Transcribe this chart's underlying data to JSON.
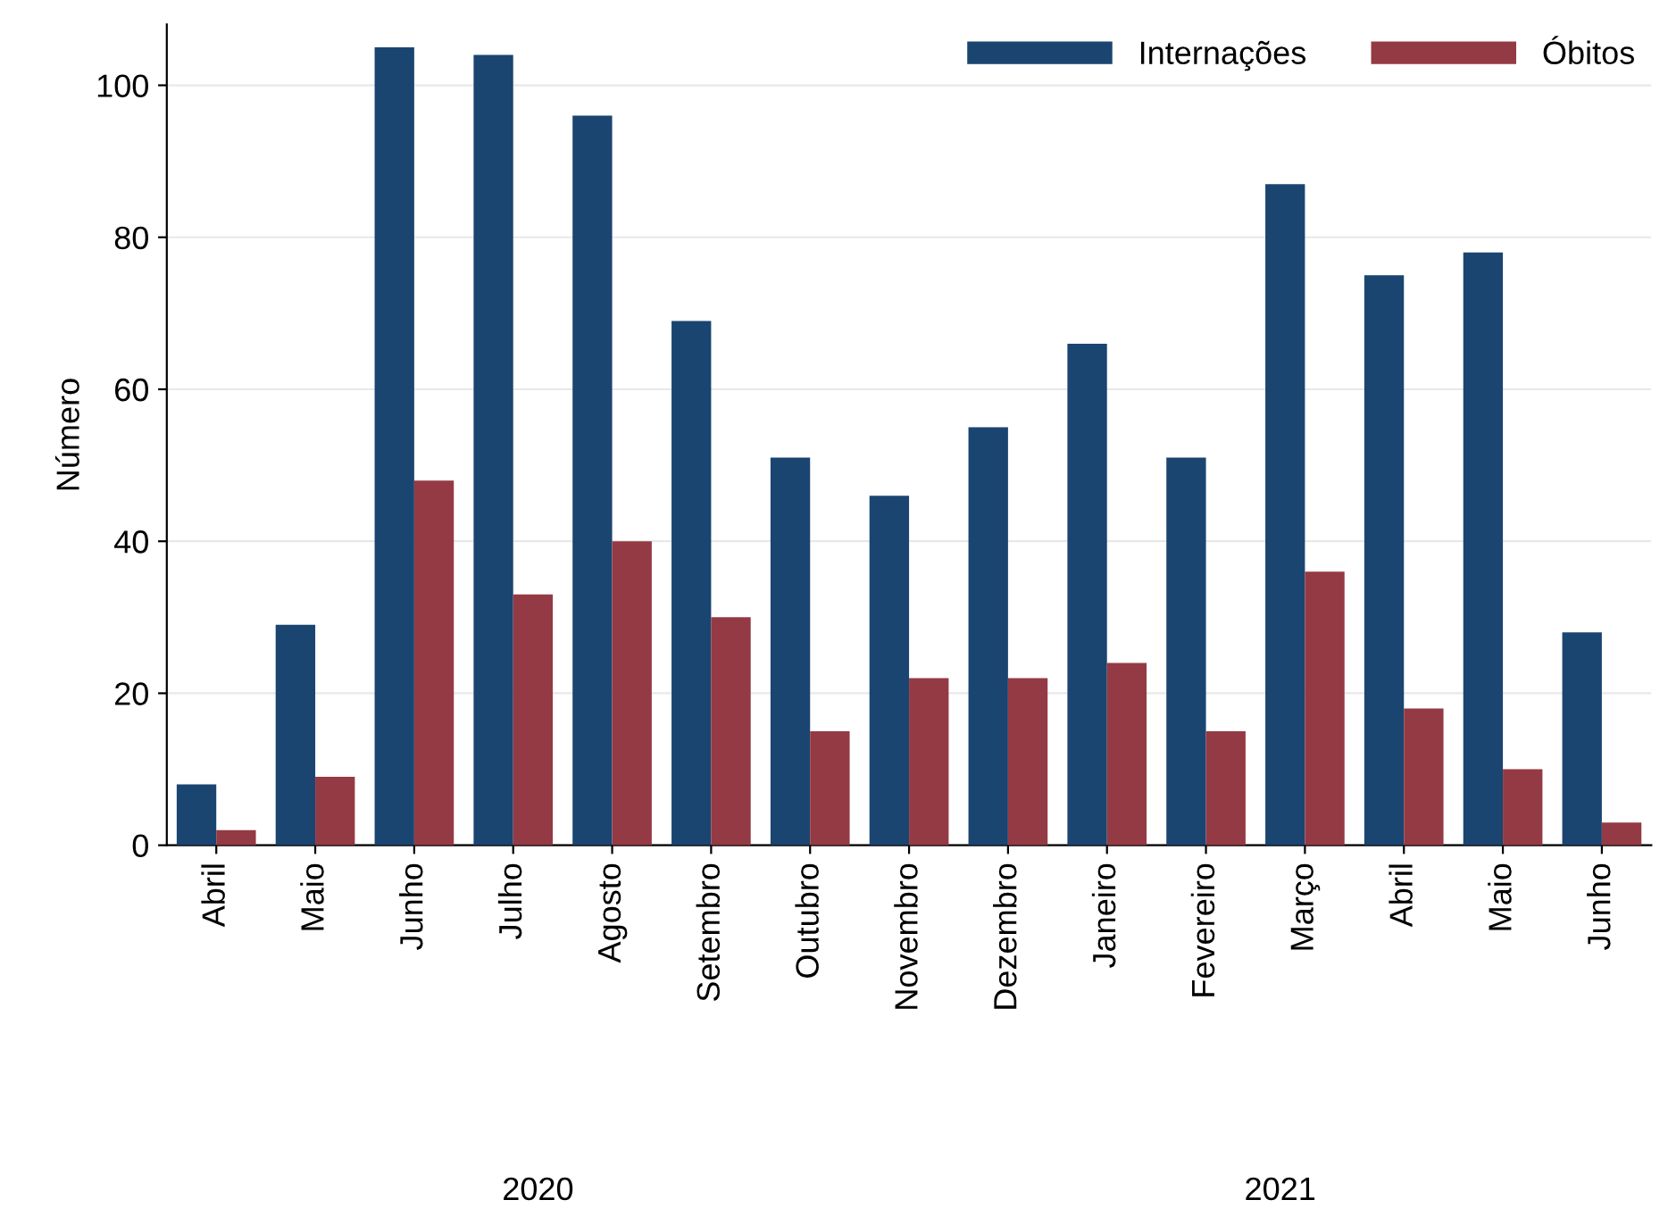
{
  "chart_data": {
    "type": "bar",
    "ylabel": "Número",
    "categories": [
      "Abril",
      "Maio",
      "Junho",
      "Julho",
      "Agosto",
      "Setembro",
      "Outubro",
      "Novembro",
      "Dezembro",
      "Janeiro",
      "Fevereiro",
      "Março",
      "Abril",
      "Maio",
      "Junho"
    ],
    "series": [
      {
        "name": "Internações",
        "color": "#1a4570",
        "values": [
          8,
          29,
          105,
          104,
          96,
          69,
          51,
          46,
          55,
          66,
          51,
          87,
          75,
          78,
          28
        ]
      },
      {
        "name": "Óbitos",
        "color": "#943a44",
        "values": [
          2,
          9,
          48,
          33,
          40,
          30,
          15,
          22,
          22,
          24,
          15,
          36,
          18,
          10,
          3
        ]
      }
    ],
    "ylim": [
      0,
      108
    ],
    "yticks": [
      0,
      20,
      40,
      60,
      80,
      100
    ],
    "grid": "y",
    "legend": "top right",
    "annotations": [
      "2020",
      "2021"
    ]
  }
}
